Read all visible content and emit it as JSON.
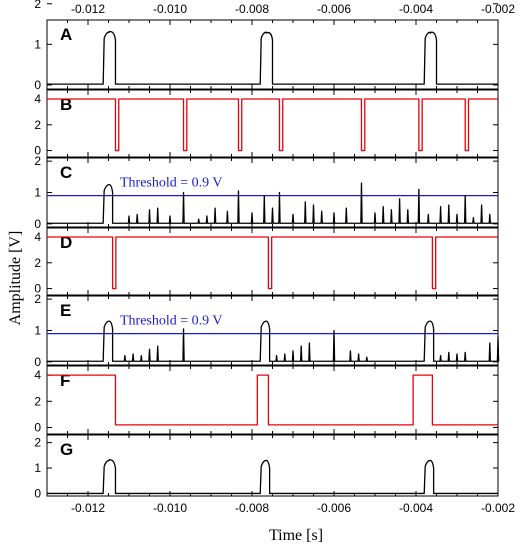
{
  "chart_data": {
    "type": "line",
    "xlabel": "Time [s]",
    "ylabel": "Amplitude [V]",
    "xlim": [
      -0.013,
      -0.002
    ],
    "x_ticks": [
      "-0.012",
      "-0.010",
      "-0.008",
      "-0.006",
      "-0.004",
      "-0.002"
    ],
    "x_tick_values": [
      -0.012,
      -0.01,
      -0.008,
      -0.006,
      -0.004,
      -0.002
    ],
    "top_axis_ticks": true,
    "panels": [
      {
        "label": "A",
        "color": "#000000",
        "ylim": [
          -0.1,
          1.6
        ],
        "y_ticks": [
          0,
          1,
          2
        ],
        "y_tick_labels": [
          "0",
          "1",
          "2"
        ],
        "kind": "pulses",
        "baseline": 0.02,
        "level": 1.3,
        "pulses": [
          [
            -0.01163,
            -0.01133
          ],
          [
            -0.0078,
            -0.0075
          ],
          [
            -0.0038,
            -0.0035
          ]
        ],
        "spikes": []
      },
      {
        "label": "B",
        "color": "#e8000b",
        "ylim": [
          -0.5,
          4.7
        ],
        "y_ticks": [
          0,
          2,
          4
        ],
        "y_tick_labels": [
          "0",
          "2",
          "4"
        ],
        "kind": "dips",
        "baseline": 4.0,
        "low": 0.0,
        "width": 8e-05,
        "events": [
          -0.01133,
          -0.00967,
          -0.00833,
          -0.00733,
          -0.00533,
          -0.00393,
          -0.0028
        ]
      },
      {
        "label": "C",
        "color": "#000000",
        "ylim": [
          -0.1,
          2.1
        ],
        "y_ticks": [
          0,
          1,
          2
        ],
        "y_tick_labels": [
          "0",
          "1",
          "2"
        ],
        "kind": "pulses",
        "baseline": 0.02,
        "level": 1.25,
        "pulses": [
          [
            -0.01163,
            -0.0114
          ]
        ],
        "spikes": [
          [
            -0.011,
            0.25
          ],
          [
            -0.0108,
            0.3
          ],
          [
            -0.0105,
            0.45
          ],
          [
            -0.0103,
            0.5
          ],
          [
            -0.01,
            0.25
          ],
          [
            -0.00967,
            1.0
          ],
          [
            -0.0093,
            0.15
          ],
          [
            -0.0091,
            0.25
          ],
          [
            -0.0089,
            0.5
          ],
          [
            -0.0086,
            0.4
          ],
          [
            -0.00833,
            1.05
          ],
          [
            -0.008,
            0.35
          ],
          [
            -0.0077,
            0.9
          ],
          [
            -0.0075,
            0.5
          ],
          [
            -0.00733,
            1.0
          ],
          [
            -0.007,
            0.3
          ],
          [
            -0.0067,
            0.7
          ],
          [
            -0.0065,
            0.6
          ],
          [
            -0.0063,
            0.4
          ],
          [
            -0.006,
            0.35
          ],
          [
            -0.0057,
            0.5
          ],
          [
            -0.00533,
            1.3
          ],
          [
            -0.005,
            0.35
          ],
          [
            -0.0048,
            0.55
          ],
          [
            -0.0046,
            0.45
          ],
          [
            -0.0044,
            0.8
          ],
          [
            -0.0042,
            0.45
          ],
          [
            -0.00393,
            1.1
          ],
          [
            -0.0037,
            0.3
          ],
          [
            -0.0034,
            0.55
          ],
          [
            -0.0032,
            0.6
          ],
          [
            -0.003,
            0.3
          ],
          [
            -0.0028,
            0.9
          ],
          [
            -0.0026,
            0.2
          ],
          [
            -0.0024,
            0.6
          ],
          [
            -0.0022,
            0.3
          ]
        ],
        "threshold": 0.9,
        "threshold_label": "Threshold = 0.9 V"
      },
      {
        "label": "D",
        "color": "#e8000b",
        "ylim": [
          -0.5,
          4.7
        ],
        "y_ticks": [
          0,
          2,
          4
        ],
        "y_tick_labels": [
          "0",
          "2",
          "4"
        ],
        "kind": "dips",
        "baseline": 4.0,
        "low": 0.0,
        "width": 8e-05,
        "events": [
          -0.0114,
          -0.0076,
          -0.0036
        ]
      },
      {
        "label": "E",
        "color": "#000000",
        "ylim": [
          -0.1,
          2.1
        ],
        "y_ticks": [
          0,
          1,
          2
        ],
        "y_tick_labels": [
          "0",
          "1",
          "2"
        ],
        "kind": "pulses",
        "baseline": 0.02,
        "level": 1.3,
        "pulses": [
          [
            -0.01163,
            -0.0114
          ],
          [
            -0.0078,
            -0.00757
          ],
          [
            -0.0038,
            -0.00357
          ]
        ],
        "spikes": [
          [
            -0.0111,
            0.2
          ],
          [
            -0.0109,
            0.25
          ],
          [
            -0.0107,
            0.2
          ],
          [
            -0.0105,
            0.4
          ],
          [
            -0.0103,
            0.5
          ],
          [
            -0.00967,
            1.05
          ],
          [
            -0.0074,
            0.2
          ],
          [
            -0.0072,
            0.25
          ],
          [
            -0.007,
            0.35
          ],
          [
            -0.0068,
            0.5
          ],
          [
            -0.0066,
            0.6
          ],
          [
            -0.006,
            1.0
          ],
          [
            -0.0056,
            0.35
          ],
          [
            -0.0054,
            0.25
          ],
          [
            -0.0052,
            0.15
          ],
          [
            -0.0034,
            0.2
          ],
          [
            -0.0032,
            0.3
          ],
          [
            -0.003,
            0.25
          ],
          [
            -0.0028,
            0.3
          ],
          [
            -0.0022,
            0.6
          ],
          [
            -0.002,
            0.8
          ]
        ],
        "threshold": 0.9,
        "threshold_label": "Threshold = 0.9 V"
      },
      {
        "label": "F",
        "color": "#e8000b",
        "ylim": [
          -0.5,
          4.7
        ],
        "y_ticks": [
          0,
          2,
          4
        ],
        "y_tick_labels": [
          "0",
          "2",
          "4"
        ],
        "kind": "gate",
        "high": 4.0,
        "low": 0.2,
        "segments": [
          [
            -0.013,
            -0.01133,
            "high"
          ],
          [
            -0.01133,
            -0.00787,
            "low"
          ],
          [
            -0.00787,
            -0.0076,
            "high"
          ],
          [
            -0.0076,
            -0.00407,
            "low"
          ],
          [
            -0.00407,
            -0.0036,
            "high"
          ],
          [
            -0.0036,
            -0.002,
            "low"
          ]
        ]
      },
      {
        "label": "G",
        "color": "#000000",
        "ylim": [
          -0.1,
          2.3
        ],
        "y_ticks": [
          0,
          1,
          2
        ],
        "y_tick_labels": [
          "0",
          "1",
          "2"
        ],
        "kind": "pulses",
        "baseline": 0.0,
        "level": 1.3,
        "pulses": [
          [
            -0.01163,
            -0.01133
          ],
          [
            -0.0078,
            -0.00757
          ],
          [
            -0.0038,
            -0.00357
          ]
        ],
        "spikes": []
      }
    ]
  }
}
